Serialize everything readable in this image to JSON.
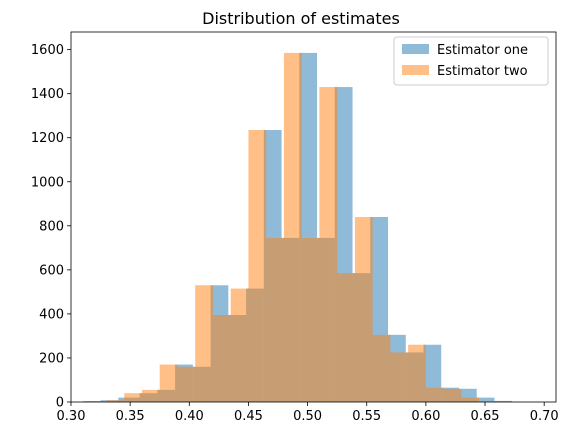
{
  "chart_data": {
    "type": "histogram",
    "title": "Distribution of estimates",
    "xlabel": "",
    "ylabel": "",
    "xlim": [
      0.3,
      0.71
    ],
    "ylim": [
      0,
      1680
    ],
    "xticks": [
      "0.30",
      "0.35",
      "0.40",
      "0.45",
      "0.50",
      "0.55",
      "0.60",
      "0.65",
      "0.70"
    ],
    "yticks": [
      "0",
      "200",
      "400",
      "600",
      "800",
      "1000",
      "1200",
      "1400",
      "1600"
    ],
    "grid": false,
    "legend_position": "top-right",
    "alpha": 0.5,
    "series": [
      {
        "name": "Estimator one",
        "color": "#1f77b4",
        "bins": [
          {
            "x0": 0.31,
            "x1": 0.325,
            "value": 4
          },
          {
            "x0": 0.325,
            "x1": 0.34,
            "value": 8
          },
          {
            "x0": 0.34,
            "x1": 0.358,
            "value": 20
          },
          {
            "x0": 0.358,
            "x1": 0.373,
            "value": 40
          },
          {
            "x0": 0.373,
            "x1": 0.388,
            "value": 55
          },
          {
            "x0": 0.388,
            "x1": 0.403,
            "value": 170
          },
          {
            "x0": 0.403,
            "x1": 0.418,
            "value": 160
          },
          {
            "x0": 0.418,
            "x1": 0.433,
            "value": 530
          },
          {
            "x0": 0.433,
            "x1": 0.448,
            "value": 395
          },
          {
            "x0": 0.448,
            "x1": 0.463,
            "value": 515
          },
          {
            "x0": 0.463,
            "x1": 0.478,
            "value": 1235
          },
          {
            "x0": 0.478,
            "x1": 0.493,
            "value": 745
          },
          {
            "x0": 0.493,
            "x1": 0.508,
            "value": 1585
          },
          {
            "x0": 0.508,
            "x1": 0.523,
            "value": 745
          },
          {
            "x0": 0.523,
            "x1": 0.538,
            "value": 1430
          },
          {
            "x0": 0.538,
            "x1": 0.553,
            "value": 585
          },
          {
            "x0": 0.553,
            "x1": 0.568,
            "value": 840
          },
          {
            "x0": 0.568,
            "x1": 0.583,
            "value": 305
          },
          {
            "x0": 0.583,
            "x1": 0.598,
            "value": 225
          },
          {
            "x0": 0.598,
            "x1": 0.613,
            "value": 260
          },
          {
            "x0": 0.613,
            "x1": 0.628,
            "value": 65
          },
          {
            "x0": 0.628,
            "x1": 0.643,
            "value": 60
          },
          {
            "x0": 0.643,
            "x1": 0.658,
            "value": 20
          },
          {
            "x0": 0.658,
            "x1": 0.673,
            "value": 5
          }
        ]
      },
      {
        "name": "Estimator two",
        "color": "#ff7f0e",
        "bins": [
          {
            "x0": 0.315,
            "x1": 0.33,
            "value": 3
          },
          {
            "x0": 0.33,
            "x1": 0.345,
            "value": 8
          },
          {
            "x0": 0.345,
            "x1": 0.36,
            "value": 40
          },
          {
            "x0": 0.36,
            "x1": 0.375,
            "value": 55
          },
          {
            "x0": 0.375,
            "x1": 0.39,
            "value": 170
          },
          {
            "x0": 0.39,
            "x1": 0.405,
            "value": 160
          },
          {
            "x0": 0.405,
            "x1": 0.42,
            "value": 530
          },
          {
            "x0": 0.42,
            "x1": 0.435,
            "value": 395
          },
          {
            "x0": 0.435,
            "x1": 0.45,
            "value": 515
          },
          {
            "x0": 0.45,
            "x1": 0.465,
            "value": 1235
          },
          {
            "x0": 0.465,
            "x1": 0.48,
            "value": 745
          },
          {
            "x0": 0.48,
            "x1": 0.495,
            "value": 1585
          },
          {
            "x0": 0.495,
            "x1": 0.51,
            "value": 745
          },
          {
            "x0": 0.51,
            "x1": 0.525,
            "value": 1430
          },
          {
            "x0": 0.525,
            "x1": 0.54,
            "value": 585
          },
          {
            "x0": 0.54,
            "x1": 0.555,
            "value": 840
          },
          {
            "x0": 0.555,
            "x1": 0.57,
            "value": 305
          },
          {
            "x0": 0.57,
            "x1": 0.585,
            "value": 225
          },
          {
            "x0": 0.585,
            "x1": 0.6,
            "value": 260
          },
          {
            "x0": 0.6,
            "x1": 0.615,
            "value": 65
          },
          {
            "x0": 0.615,
            "x1": 0.63,
            "value": 60
          },
          {
            "x0": 0.63,
            "x1": 0.645,
            "value": 20
          }
        ]
      }
    ]
  }
}
